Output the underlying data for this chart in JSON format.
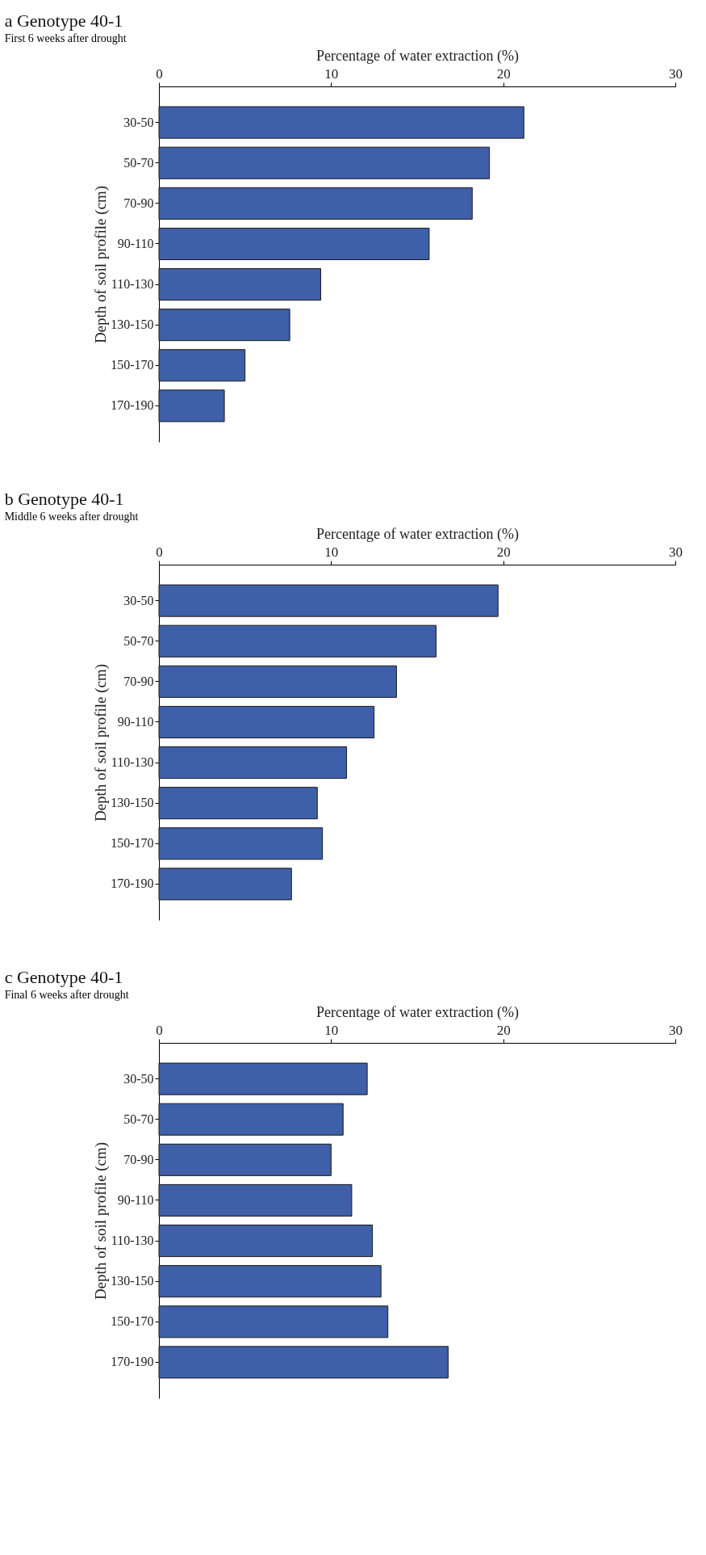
{
  "chart_data": [
    {
      "type": "bar",
      "orientation": "horizontal",
      "title": "a Genotype 40-1",
      "subtitle": "First 6 weeks after drought",
      "xlabel": "Percentage of water extraction (%)",
      "ylabel": "Depth of soil profile (cm)",
      "categories": [
        "30-50",
        "50-70",
        "70-90",
        "90-110",
        "110-130",
        "130-150",
        "150-170",
        "170-190"
      ],
      "values": [
        21.2,
        19.2,
        18.2,
        15.7,
        9.4,
        7.6,
        5.0,
        3.8
      ],
      "color": "#3f5fa8",
      "xlim": [
        0,
        30
      ],
      "xticks": [
        0,
        10,
        20,
        30
      ],
      "grid": false
    },
    {
      "type": "bar",
      "orientation": "horizontal",
      "title": "b Genotype 40-1",
      "subtitle": "Middle 6 weeks after drought",
      "xlabel": "Percentage of water extraction (%)",
      "ylabel": "Depth of soil profile (cm)",
      "categories": [
        "30-50",
        "50-70",
        "70-90",
        "90-110",
        "110-130",
        "130-150",
        "150-170",
        "170-190"
      ],
      "values": [
        19.7,
        16.1,
        13.8,
        12.5,
        10.9,
        9.2,
        9.5,
        7.7
      ],
      "color": "#3f5fa8",
      "xlim": [
        0,
        30
      ],
      "xticks": [
        0,
        10,
        20,
        30
      ],
      "grid": false
    },
    {
      "type": "bar",
      "orientation": "horizontal",
      "title": "c Genotype 40-1",
      "subtitle": "Final 6 weeks after drought",
      "xlabel": "Percentage of water extraction (%)",
      "ylabel": "Depth of soil profile (cm)",
      "categories": [
        "30-50",
        "50-70",
        "70-90",
        "90-110",
        "110-130",
        "130-150",
        "150-170",
        "170-190"
      ],
      "values": [
        12.1,
        10.7,
        10.0,
        11.2,
        12.4,
        12.9,
        13.3,
        16.8
      ],
      "color": "#3f5fa8",
      "xlim": [
        0,
        30
      ],
      "xticks": [
        0,
        10,
        20,
        30
      ],
      "grid": false
    }
  ]
}
